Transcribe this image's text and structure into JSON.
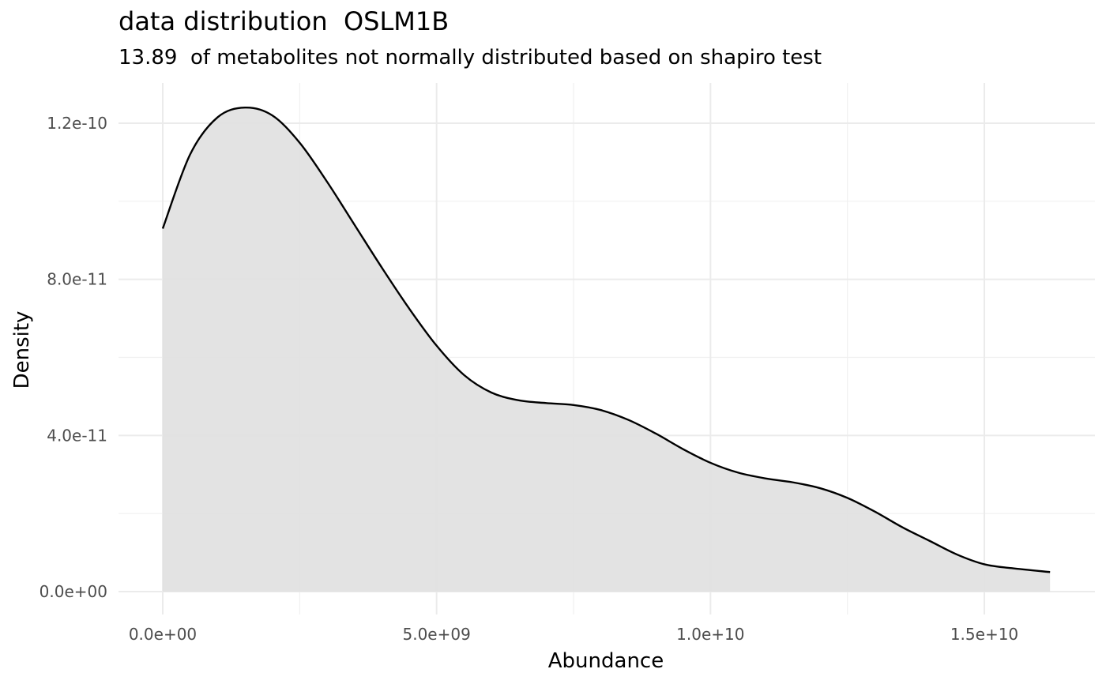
{
  "chart_data": {
    "type": "area",
    "title": "data distribution  OSLM1B",
    "subtitle": "13.89  of metabolites not normally distributed based on shapiro test",
    "xlabel": "Abundance",
    "ylabel": "Density",
    "xlim": [
      -800000000,
      16900000000
    ],
    "ylim": [
      -5e-12,
      1.3e-10
    ],
    "x_ticks": [
      0,
      5000000000,
      10000000000,
      15000000000
    ],
    "x_tick_labels": [
      "0.0e+00",
      "5.0e+09",
      "1.0e+10",
      "1.5e+10"
    ],
    "y_ticks": [
      0,
      4e-11,
      8e-11,
      1.2e-10
    ],
    "y_tick_labels": [
      "0.0e+00",
      "4.0e-11",
      "8.0e-11",
      "1.2e-10"
    ],
    "x_minor": [
      2500000000,
      7500000000,
      12500000000
    ],
    "y_minor": [
      2e-11,
      6e-11,
      1e-10
    ],
    "grid": true,
    "fill_color": "#e1e1e1",
    "line_color": "#000000",
    "series": [
      {
        "x": [
          0,
          500000000,
          1000000000,
          1500000000,
          2000000000,
          2500000000,
          3000000000,
          3500000000,
          4000000000,
          4500000000,
          5000000000,
          5500000000,
          6000000000,
          6500000000,
          7000000000,
          7500000000,
          8000000000,
          8500000000,
          9000000000,
          9500000000,
          10000000000,
          10500000000,
          11000000000,
          11500000000,
          12000000000,
          12500000000,
          13000000000,
          13500000000,
          14000000000,
          14500000000,
          15000000000,
          15500000000,
          16200000000
        ],
        "y": [
          9.3e-11,
          1.12e-10,
          1.215e-10,
          1.24e-10,
          1.22e-10,
          1.15e-10,
          1.05e-10,
          9.4e-11,
          8.3e-11,
          7.25e-11,
          6.3e-11,
          5.55e-11,
          5.1e-11,
          4.9e-11,
          4.83e-11,
          4.78e-11,
          4.65e-11,
          4.4e-11,
          4.05e-11,
          3.65e-11,
          3.3e-11,
          3.05e-11,
          2.9e-11,
          2.8e-11,
          2.65e-11,
          2.4e-11,
          2.05e-11,
          1.65e-11,
          1.3e-11,
          9.5e-12,
          7e-12,
          6e-12,
          5e-12
        ]
      }
    ]
  }
}
